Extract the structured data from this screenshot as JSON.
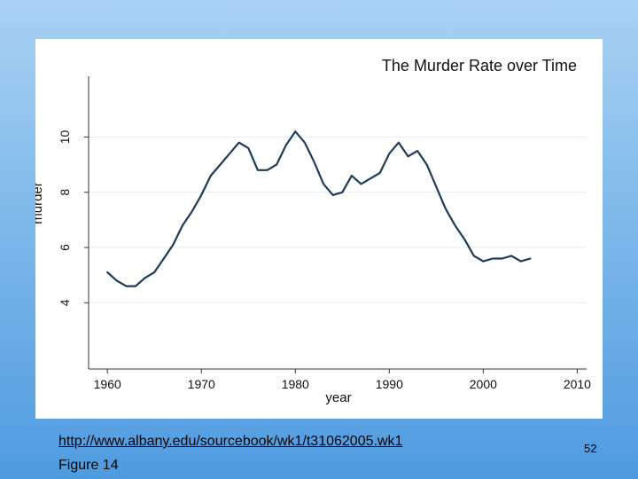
{
  "slide": {
    "source_url": "http://www.albany.edu/sourcebook/wk1/t31062005.wk1",
    "figure_label": "Figure 14",
    "page_number": "52"
  },
  "chart_data": {
    "type": "line",
    "title": "The Murder Rate over Time",
    "xlabel": "year",
    "ylabel": "murder",
    "xlim": [
      1958,
      2011
    ],
    "ylim": [
      1.6,
      12.2
    ],
    "x_ticks": [
      1960,
      1970,
      1980,
      1990,
      2000,
      2010
    ],
    "y_ticks": [
      4,
      6,
      8,
      10
    ],
    "grid": true,
    "series": [
      {
        "x": [
          1960,
          1961,
          1962,
          1963,
          1964,
          1965,
          1966,
          1967,
          1968,
          1969,
          1970,
          1971,
          1972,
          1973,
          1974,
          1975,
          1976,
          1977,
          1978,
          1979,
          1980,
          1981,
          1982,
          1983,
          1984,
          1985,
          1986,
          1987,
          1988,
          1989,
          1990,
          1991,
          1992,
          1993,
          1994,
          1995,
          1996,
          1997,
          1998,
          1999,
          2000,
          2001,
          2002,
          2003,
          2004,
          2005
        ],
        "y": [
          5.1,
          4.8,
          4.6,
          4.6,
          4.9,
          5.1,
          5.6,
          6.1,
          6.8,
          7.3,
          7.9,
          8.6,
          9.0,
          9.4,
          9.8,
          9.6,
          8.8,
          8.8,
          9.0,
          9.7,
          10.2,
          9.8,
          9.1,
          8.3,
          7.9,
          8.0,
          8.6,
          8.3,
          8.5,
          8.7,
          9.4,
          9.8,
          9.3,
          9.5,
          9.0,
          8.2,
          7.4,
          6.8,
          6.3,
          5.7,
          5.5,
          5.6,
          5.6,
          5.7,
          5.5,
          5.6
        ]
      }
    ]
  }
}
